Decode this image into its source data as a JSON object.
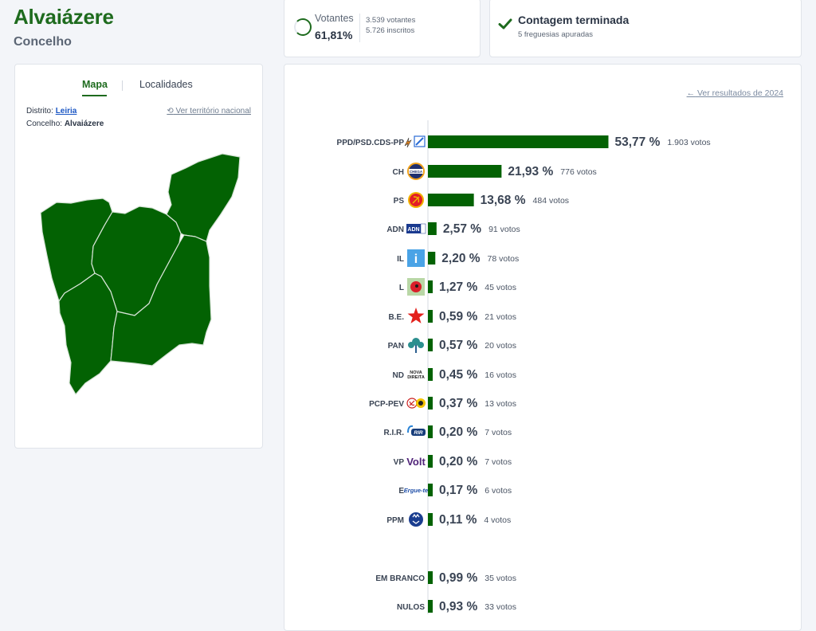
{
  "header": {
    "title": "Alvaiázere",
    "subtitle": "Concelho"
  },
  "turnout": {
    "label": "Votantes",
    "percent": "61,81%",
    "percent_value": 61.81,
    "voters": "3.539 votantes",
    "registered": "5.726 inscritos"
  },
  "count_status": {
    "title": "Contagem terminada",
    "subtitle": "5 freguesias apuradas"
  },
  "map_panel": {
    "tabs": [
      "Mapa",
      "Localidades"
    ],
    "district_label": "Distrito:",
    "district_value": "Leiria",
    "county_label": "Concelho:",
    "county_value": "Alvaiázere",
    "national_link": "Ver território nacional",
    "fill_color": "#036203"
  },
  "results": {
    "previous_link": "Ver resultados de 2024",
    "bar_color": "#036203"
  },
  "chart_data": {
    "type": "bar",
    "orientation": "horizontal",
    "categories": [
      "PPD/PSD.CDS-PP",
      "CH",
      "PS",
      "ADN",
      "IL",
      "L",
      "B.E.",
      "PAN",
      "ND",
      "PCP-PEV",
      "R.I.R.",
      "VP",
      "E",
      "PPM",
      "EM BRANCO",
      "NULOS"
    ],
    "values": [
      53.77,
      21.93,
      13.68,
      2.57,
      2.2,
      1.27,
      0.59,
      0.57,
      0.45,
      0.37,
      0.2,
      0.2,
      0.17,
      0.11,
      0.99,
      0.93
    ],
    "value_labels": [
      "53,77 %",
      "21,93 %",
      "13,68 %",
      "2,57 %",
      "2,20 %",
      "1,27 %",
      "0,59 %",
      "0,57 %",
      "0,45 %",
      "0,37 %",
      "0,20 %",
      "0,20 %",
      "0,17 %",
      "0,11 %",
      "0,99 %",
      "0,93 %"
    ],
    "votes": [
      1903,
      776,
      484,
      91,
      78,
      45,
      21,
      20,
      16,
      13,
      7,
      7,
      6,
      4,
      35,
      33
    ],
    "vote_labels": [
      "1.903 votos",
      "776 votos",
      "484 votos",
      "91 votos",
      "78 votos",
      "45 votos",
      "21 votos",
      "20 votos",
      "16 votos",
      "13 votos",
      "7 votos",
      "7 votos",
      "6 votos",
      "4 votos",
      "35 votos",
      "33 votos"
    ],
    "logo_texts": {
      "CH": "CHEGA",
      "ADN": "ADN",
      "IL": "i",
      "ND": "NOVA DIREITA",
      "R.I.R.": "RIR",
      "VP": "Volt",
      "E": "Ergue-te"
    },
    "logo_icons": [
      "psd-cds-logo",
      "chega-logo",
      "ps-logo",
      "adn-logo",
      "il-logo",
      "livre-logo",
      "be-star-logo",
      "pan-logo",
      "nd-logo",
      "pcp-pev-logo",
      "rir-logo",
      "volt-logo",
      "ergue-te-logo",
      "ppm-logo",
      "",
      ""
    ],
    "xlim": [
      0,
      100
    ]
  }
}
